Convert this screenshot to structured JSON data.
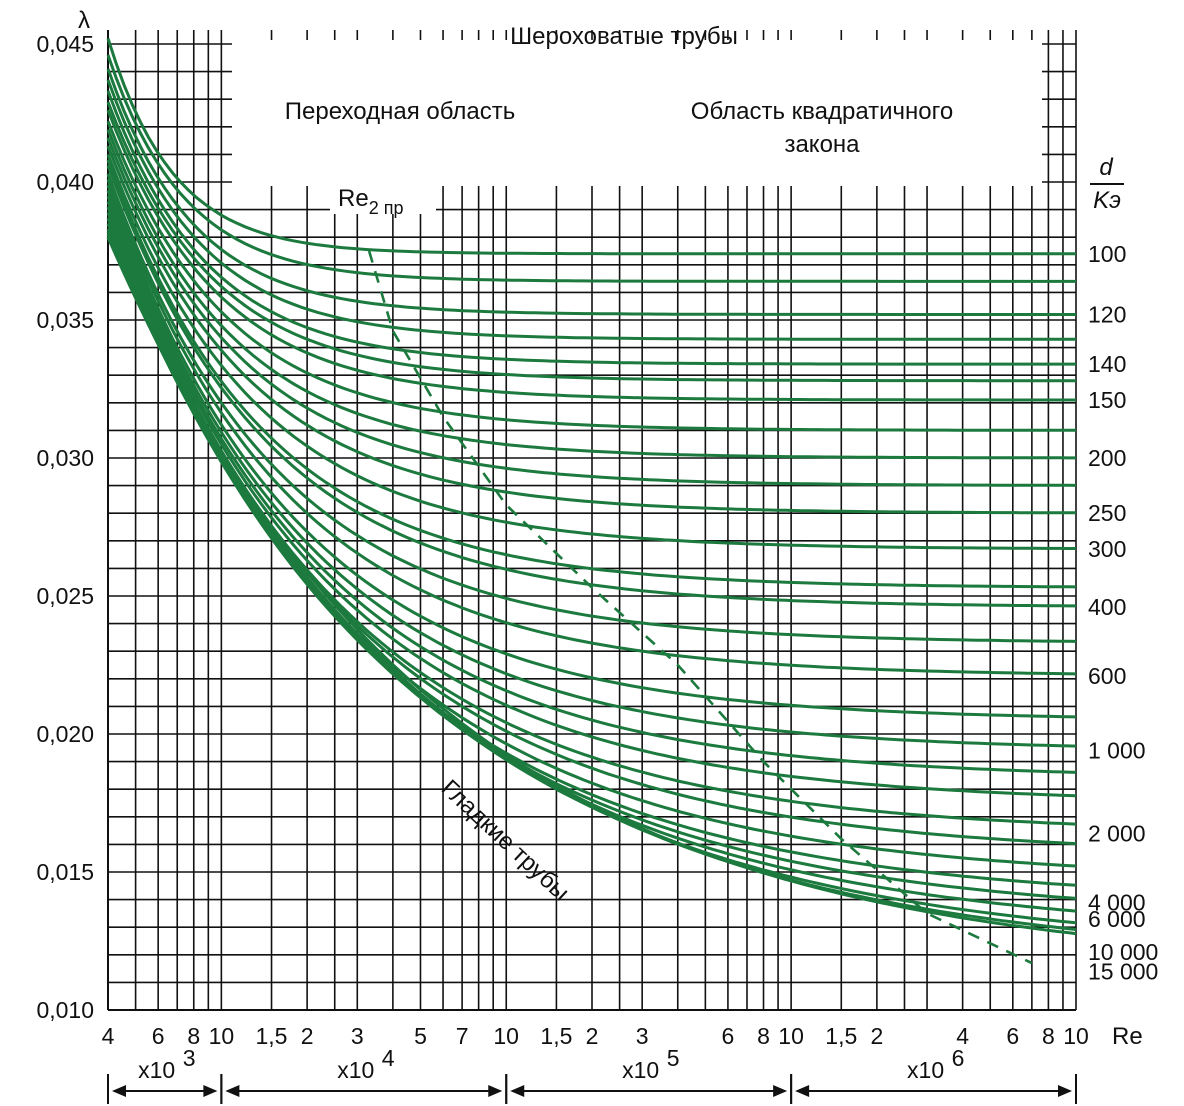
{
  "chart_data": {
    "type": "line",
    "title": "Шероховатые трубы",
    "xlabel": "Re",
    "ylabel": "λ",
    "x_scale": "log",
    "xlim": [
      4000,
      10000000
    ],
    "ylim": [
      0.01,
      0.046
    ],
    "y_ticks": [
      "0,045",
      "0,040",
      "0,035",
      "0,030",
      "0,025",
      "0,020",
      "0,015",
      "0,010"
    ],
    "y_tick_values": [
      0.045,
      0.04,
      0.035,
      0.03,
      0.025,
      0.02,
      0.015,
      0.01
    ],
    "x_ticks": [
      {
        "label": "4",
        "value": 4000
      },
      {
        "label": "6",
        "value": 6000
      },
      {
        "label": "8",
        "value": 8000
      },
      {
        "label": "10",
        "value": 10000
      },
      {
        "label": "1,5",
        "value": 15000
      },
      {
        "label": "2",
        "value": 20000
      },
      {
        "label": "3",
        "value": 30000
      },
      {
        "label": "5",
        "value": 50000
      },
      {
        "label": "7",
        "value": 70000
      },
      {
        "label": "10",
        "value": 100000
      },
      {
        "label": "1,5",
        "value": 150000
      },
      {
        "label": "2",
        "value": 200000
      },
      {
        "label": "3",
        "value": 300000
      },
      {
        "label": "6",
        "value": 600000
      },
      {
        "label": "8",
        "value": 800000
      },
      {
        "label": "10",
        "value": 1000000
      },
      {
        "label": "1,5",
        "value": 1500000
      },
      {
        "label": "2",
        "value": 2000000
      },
      {
        "label": "4",
        "value": 4000000
      },
      {
        "label": "6",
        "value": 6000000
      },
      {
        "label": "8",
        "value": 8000000
      },
      {
        "label": "10",
        "value": 10000000
      }
    ],
    "x_grid": [
      4000,
      5000,
      6000,
      7000,
      8000,
      9000,
      10000,
      15000,
      20000,
      25000,
      30000,
      40000,
      50000,
      60000,
      70000,
      80000,
      90000,
      100000,
      150000,
      200000,
      250000,
      300000,
      400000,
      500000,
      600000,
      700000,
      800000,
      900000,
      1000000,
      1500000,
      2000000,
      2500000,
      3000000,
      4000000,
      5000000,
      6000000,
      7000000,
      8000000,
      9000000,
      10000000
    ],
    "y_grid_step": 0.001,
    "decades": [
      {
        "label": "x10",
        "exp": "3",
        "from": 4000,
        "to": 10000
      },
      {
        "label": "x10",
        "exp": "4",
        "from": 10000,
        "to": 100000
      },
      {
        "label": "x10",
        "exp": "5",
        "from": 100000,
        "to": 1000000
      },
      {
        "label": "x10",
        "exp": "6",
        "from": 1000000,
        "to": 10000000
      }
    ],
    "legend_header": {
      "numerator": "d",
      "denominator": "Kэ"
    },
    "region_labels": {
      "transition": "Переходная область",
      "quadratic_line1": "Область квадратичного",
      "quadratic_line2": "закона",
      "smooth": "Гладкие трубы",
      "boundary_main": "Re",
      "boundary_sub": "2 пр"
    },
    "series": [
      {
        "name": "100",
        "labelled": true,
        "start": 0.0452,
        "limit": 0.0374,
        "knee": 16000
      },
      {
        "name": "",
        "labelled": false,
        "start": 0.0446,
        "limit": 0.0364,
        "knee": 20000
      },
      {
        "name": "120",
        "labelled": true,
        "start": 0.0441,
        "limit": 0.0352,
        "knee": 24000
      },
      {
        "name": "",
        "labelled": false,
        "start": 0.0437,
        "limit": 0.0343,
        "knee": 28000
      },
      {
        "name": "140",
        "labelled": true,
        "start": 0.0433,
        "limit": 0.0334,
        "knee": 32000
      },
      {
        "name": "",
        "labelled": false,
        "start": 0.0429,
        "limit": 0.0328,
        "knee": 36000
      },
      {
        "name": "150",
        "labelled": true,
        "start": 0.0426,
        "limit": 0.0321,
        "knee": 40000
      },
      {
        "name": "",
        "labelled": false,
        "start": 0.0422,
        "limit": 0.031,
        "knee": 48000
      },
      {
        "name": "200",
        "labelled": true,
        "start": 0.0419,
        "limit": 0.03,
        "knee": 55000
      },
      {
        "name": "",
        "labelled": false,
        "start": 0.0416,
        "limit": 0.029,
        "knee": 65000
      },
      {
        "name": "250",
        "labelled": true,
        "start": 0.0413,
        "limit": 0.028,
        "knee": 75000
      },
      {
        "name": "300",
        "labelled": true,
        "start": 0.041,
        "limit": 0.0267,
        "knee": 90000
      },
      {
        "name": "",
        "labelled": false,
        "start": 0.0408,
        "limit": 0.0253,
        "knee": 105000
      },
      {
        "name": "400",
        "labelled": true,
        "start": 0.0406,
        "limit": 0.0246,
        "knee": 120000
      },
      {
        "name": "",
        "labelled": false,
        "start": 0.0403,
        "limit": 0.0233,
        "knee": 140000
      },
      {
        "name": "600",
        "labelled": true,
        "start": 0.0401,
        "limit": 0.0221,
        "knee": 170000
      },
      {
        "name": "",
        "labelled": false,
        "start": 0.0399,
        "limit": 0.0205,
        "knee": 220000
      },
      {
        "name": "1 000",
        "labelled": true,
        "start": 0.0397,
        "limit": 0.0194,
        "knee": 270000
      },
      {
        "name": "",
        "labelled": false,
        "start": 0.0395,
        "limit": 0.0184,
        "knee": 330000
      },
      {
        "name": "",
        "labelled": false,
        "start": 0.0393,
        "limit": 0.0175,
        "knee": 400000
      },
      {
        "name": "2 000",
        "labelled": true,
        "start": 0.0391,
        "limit": 0.0164,
        "knee": 500000
      },
      {
        "name": "",
        "labelled": false,
        "start": 0.0389,
        "limit": 0.0156,
        "knee": 650000
      },
      {
        "name": "",
        "labelled": false,
        "start": 0.0387,
        "limit": 0.0147,
        "knee": 800000
      },
      {
        "name": "4 000",
        "labelled": true,
        "start": 0.0385,
        "limit": 0.0139,
        "knee": 1000000
      },
      {
        "name": "6 000",
        "labelled": true,
        "start": 0.0383,
        "limit": 0.0133,
        "knee": 1300000
      },
      {
        "name": "",
        "labelled": false,
        "start": 0.0382,
        "limit": 0.0127,
        "knee": 1700000
      },
      {
        "name": "10 000",
        "labelled": true,
        "start": 0.0381,
        "limit": 0.0121,
        "knee": 2300000
      },
      {
        "name": "",
        "labelled": false,
        "start": 0.038,
        "limit": 0.0117,
        "knee": 3000000
      },
      {
        "name": "15 000",
        "labelled": true,
        "start": 0.038,
        "limit": 0.0114,
        "knee": 3800000
      }
    ],
    "boundary_curve": {
      "x": [
        33000,
        40000,
        60000,
        100000,
        200000,
        400000,
        800000,
        1500000,
        3000000,
        7000000
      ],
      "y": [
        0.0375,
        0.0346,
        0.0315,
        0.0283,
        0.0253,
        0.0225,
        0.019,
        0.0162,
        0.0135,
        0.0117
      ]
    }
  }
}
